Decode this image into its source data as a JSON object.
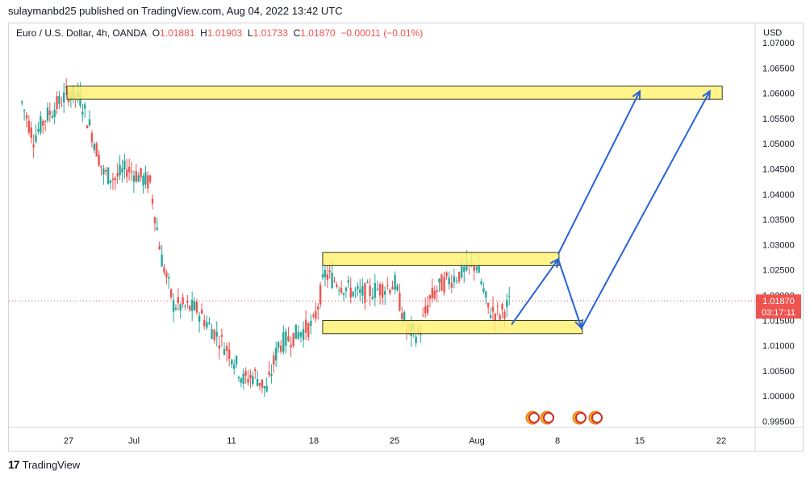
{
  "header": {
    "published": "sulaymanbd25 published on TradingView.com, Aug 04, 2022 13:42 UTC"
  },
  "symbol": {
    "name": "Euro / U.S. Dollar, 4h, OANDA",
    "o_label": "O",
    "o": "1.01881",
    "h_label": "H",
    "h": "1.01903",
    "l_label": "L",
    "l": "1.01733",
    "c_label": "C",
    "c": "1.01870",
    "change": "−0.00011 (−0.01%)"
  },
  "price_badge": {
    "price": "1.01870",
    "countdown": "03:17:11"
  },
  "footer": {
    "brand": "TradingView",
    "logo": "tradingview-logo-icon"
  },
  "colors": {
    "up": "#26a69a",
    "down": "#ef5350",
    "zone_fill": "#fff176",
    "zone_stroke": "#3a3a1a",
    "arrow": "#2962d9",
    "badge": "#ef5350"
  },
  "chart_data": {
    "type": "candlestick",
    "currency": "USD",
    "y_ticks": [
      "1.07000",
      "1.06500",
      "1.06000",
      "1.05500",
      "1.05000",
      "1.04500",
      "1.04000",
      "1.03500",
      "1.03000",
      "1.02500",
      "1.02000",
      "1.01500",
      "1.01000",
      "1.00500",
      "1.00000",
      "0.99500"
    ],
    "x_ticks": [
      "27",
      "Jul",
      "11",
      "18",
      "25",
      "Aug",
      "8",
      "15",
      "22"
    ],
    "last_price": 1.0187,
    "ohlc_path_keypoints": [
      {
        "t": "Jun 23",
        "p": 1.058
      },
      {
        "t": "Jun 24",
        "p": 1.051
      },
      {
        "t": "Jun 25",
        "p": 1.055
      },
      {
        "t": "Jun 27",
        "p": 1.06
      },
      {
        "t": "Jun 28",
        "p": 1.059
      },
      {
        "t": "Jun 29",
        "p": 1.052
      },
      {
        "t": "Jun 30",
        "p": 1.044
      },
      {
        "t": "Jul 1",
        "p": 1.043
      },
      {
        "t": "Jul 2",
        "p": 1.045
      },
      {
        "t": "Jul 4",
        "p": 1.042
      },
      {
        "t": "Jul 5",
        "p": 1.027
      },
      {
        "t": "Jul 6",
        "p": 1.018
      },
      {
        "t": "Jul 8",
        "p": 1.017
      },
      {
        "t": "Jul 11",
        "p": 1.008
      },
      {
        "t": "Jul 12",
        "p": 1.003
      },
      {
        "t": "Jul 13",
        "p": 1.004
      },
      {
        "t": "Jul 14",
        "p": 1.001
      },
      {
        "t": "Jul 15",
        "p": 1.01
      },
      {
        "t": "Jul 18",
        "p": 1.014
      },
      {
        "t": "Jul 19",
        "p": 1.024
      },
      {
        "t": "Jul 21",
        "p": 1.021
      },
      {
        "t": "Jul 22",
        "p": 1.02
      },
      {
        "t": "Jul 25",
        "p": 1.022
      },
      {
        "t": "Jul 26",
        "p": 1.013
      },
      {
        "t": "Jul 27",
        "p": 1.012
      },
      {
        "t": "Jul 28",
        "p": 1.019
      },
      {
        "t": "Jul 29",
        "p": 1.022
      },
      {
        "t": "Aug 1",
        "p": 1.026
      },
      {
        "t": "Aug 2",
        "p": 1.017
      },
      {
        "t": "Aug 3",
        "p": 1.016
      },
      {
        "t": "Aug 4",
        "p": 1.0187
      }
    ],
    "zones": [
      {
        "name": "resistance-top",
        "from": "Jun 27",
        "to": "Aug 22",
        "low": 1.0595,
        "high": 1.0605
      },
      {
        "name": "range-top",
        "from": "Jul 19",
        "to": "Aug 8",
        "low": 1.0265,
        "high": 1.0275
      },
      {
        "name": "range-bottom",
        "from": "Jul 19",
        "to": "Aug 10",
        "low": 1.013,
        "high": 1.014
      }
    ],
    "arrows": [
      [
        {
          "t": "Aug 4",
          "p": 1.014
        },
        {
          "t": "Aug 8",
          "p": 1.027
        },
        {
          "t": "Aug 10",
          "p": 1.0133
        },
        {
          "t": "Aug 21",
          "p": 1.0603
        }
      ],
      [
        {
          "t": "Aug 8",
          "p": 1.028
        },
        {
          "t": "Aug 15",
          "p": 1.0603
        }
      ]
    ],
    "event_icons": [
      "us-eu-flag-icon",
      "us-eu-flag-icon",
      "us-eu-flag-icon",
      "us-eu-flag-icon"
    ]
  }
}
